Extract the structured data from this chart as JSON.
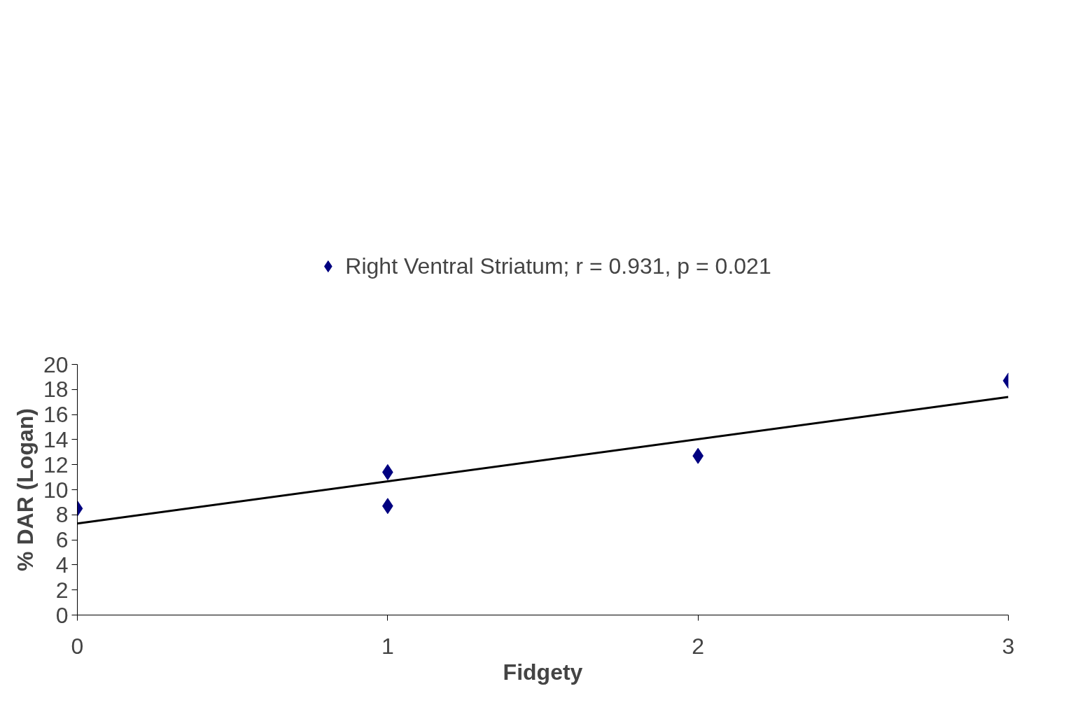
{
  "chart_data": {
    "type": "scatter",
    "xlabel": "Fidgety",
    "ylabel": "% DAR (Logan)",
    "xlim": [
      0,
      3
    ],
    "xticks": [
      0,
      1,
      2,
      3
    ],
    "ylim": [
      0,
      20
    ],
    "yticks": [
      0,
      2,
      4,
      6,
      8,
      10,
      12,
      14,
      16,
      18,
      20
    ],
    "grid": false,
    "legend": "top",
    "marker": "diamond",
    "series": [
      {
        "name": "Right Ventral Striatum; r = 0.931, p = 0.021",
        "color": "#000080",
        "x": [
          0,
          1,
          1,
          2,
          3
        ],
        "values": [
          8.5,
          11.4,
          8.7,
          12.7,
          18.7
        ]
      },
      {
        "type": "line",
        "color": "#000000",
        "x": [
          0,
          3
        ],
        "values": [
          7.3,
          17.4
        ],
        "line_style": "solid",
        "marker": "none"
      }
    ]
  }
}
